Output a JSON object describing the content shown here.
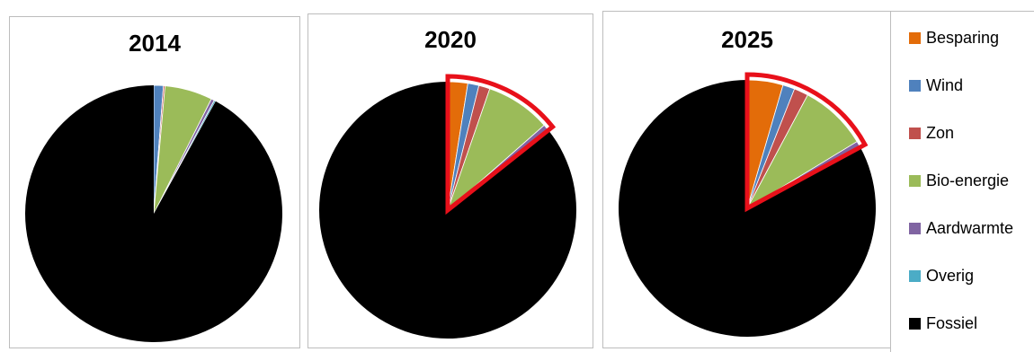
{
  "chart_data": [
    {
      "type": "pie",
      "title": "2014",
      "slices": [
        {
          "name": "Besparing",
          "value": 0
        },
        {
          "name": "Wind",
          "value": 1.2
        },
        {
          "name": "Zon",
          "value": 0.2
        },
        {
          "name": "Bio-energie",
          "value": 6.0
        },
        {
          "name": "Aardwarmte",
          "value": 0.4
        },
        {
          "name": "Overig",
          "value": 0.2
        },
        {
          "name": "Fossiel",
          "value": 92.0
        }
      ]
    },
    {
      "type": "pie",
      "title": "2020",
      "highlight": true,
      "slices": [
        {
          "name": "Besparing",
          "value": 2.5
        },
        {
          "name": "Wind",
          "value": 1.4
        },
        {
          "name": "Zon",
          "value": 1.4
        },
        {
          "name": "Bio-energie",
          "value": 8.2
        },
        {
          "name": "Aardwarmte",
          "value": 0.6
        },
        {
          "name": "Overig",
          "value": 0.2
        },
        {
          "name": "Fossiel",
          "value": 85.7
        }
      ]
    },
    {
      "type": "pie",
      "title": "2025",
      "highlight": true,
      "slices": [
        {
          "name": "Besparing",
          "value": 4.5
        },
        {
          "name": "Wind",
          "value": 1.5
        },
        {
          "name": "Zon",
          "value": 1.8
        },
        {
          "name": "Bio-energie",
          "value": 8.5
        },
        {
          "name": "Aardwarmte",
          "value": 0.6
        },
        {
          "name": "Overig",
          "value": 0.2
        },
        {
          "name": "Fossiel",
          "value": 82.9
        }
      ]
    }
  ],
  "legend": {
    "position": "right",
    "items": [
      {
        "label": "Besparing",
        "color": "#e36c09"
      },
      {
        "label": "Wind",
        "color": "#4f81bd"
      },
      {
        "label": "Zon",
        "color": "#c0504d"
      },
      {
        "label": "Bio-energie",
        "color": "#9bbb59"
      },
      {
        "label": "Aardwarmte",
        "color": "#8064a2"
      },
      {
        "label": "Overig",
        "color": "#4bacc6"
      },
      {
        "label": "Fossiel",
        "color": "#000000"
      }
    ]
  },
  "highlight_color": "#e8101a"
}
